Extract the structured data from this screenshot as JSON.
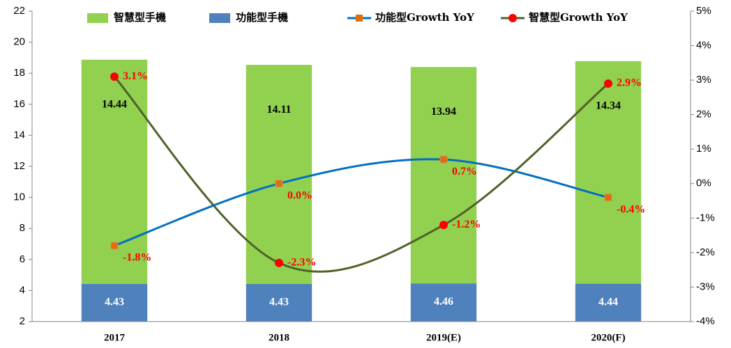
{
  "chart_data": {
    "type": "bar-line",
    "categories": [
      "2017",
      "2018",
      "2019(E)",
      "2020(F)"
    ],
    "series": [
      {
        "name": "智慧型手機",
        "type": "bar",
        "color": "#92d050",
        "values": [
          14.44,
          14.11,
          13.94,
          14.34
        ]
      },
      {
        "name": "功能型手機",
        "type": "bar",
        "color": "#4f81bd",
        "values": [
          4.43,
          4.43,
          4.46,
          4.44
        ]
      },
      {
        "name": "功能型Growth YoY",
        "type": "line",
        "axis": "y2",
        "color": "#0070c0",
        "marker": "square",
        "marker_color": "#e46c0a",
        "values": [
          -1.8,
          0.0,
          0.7,
          -0.4
        ],
        "value_labels": [
          "-1.8%",
          "0.0%",
          "0.7%",
          "-0.4%"
        ]
      },
      {
        "name": "智慧型Growth YoY",
        "type": "line",
        "axis": "y2",
        "color": "#4f6228",
        "marker": "circle",
        "marker_color": "#ff0000",
        "values": [
          3.1,
          -2.3,
          -1.2,
          2.9
        ],
        "value_labels": [
          "3.1%",
          "-2.3%",
          "-1.2%",
          "2.9%"
        ]
      }
    ],
    "stacked": true,
    "ylim": [
      2,
      22
    ],
    "yticks": [
      2,
      4,
      6,
      8,
      10,
      12,
      14,
      16,
      18,
      20,
      22
    ],
    "y2lim": [
      -4,
      5
    ],
    "y2ticks": [
      {
        "value": -4,
        "label": "-4%"
      },
      {
        "value": -3,
        "label": "-3%"
      },
      {
        "value": -2,
        "label": "-2%"
      },
      {
        "value": -1,
        "label": "-1%"
      },
      {
        "value": 0,
        "label": "0%"
      },
      {
        "value": 1,
        "label": "1%"
      },
      {
        "value": 2,
        "label": "2%"
      },
      {
        "value": 3,
        "label": "3%"
      },
      {
        "value": 4,
        "label": "4%"
      },
      {
        "value": 5,
        "label": "5%"
      }
    ],
    "smooth": true,
    "legend": "top"
  }
}
